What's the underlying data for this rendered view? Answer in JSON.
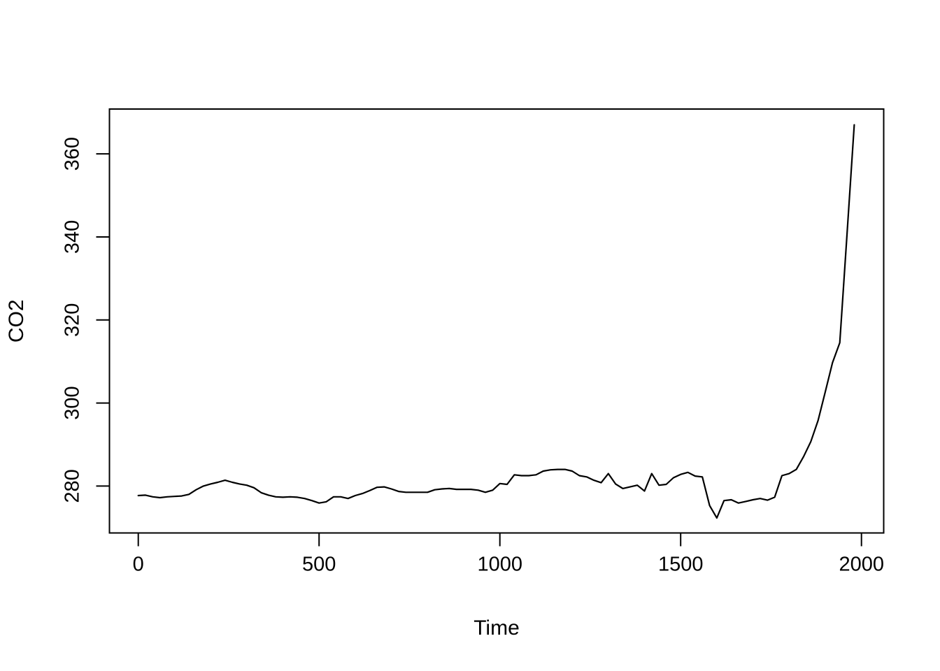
{
  "chart_data": {
    "type": "line",
    "title": "",
    "xlabel": "Time",
    "ylabel": "CO2",
    "grid": false,
    "legend": "none",
    "frame": true,
    "background_color": "#ffffff",
    "line_color": "#000000",
    "xticks": [
      0,
      500,
      1000,
      1500,
      2000
    ],
    "yticks": [
      280,
      300,
      320,
      340,
      360
    ],
    "xtick_labels": [
      "0",
      "500",
      "1000",
      "1500",
      "2000"
    ],
    "ytick_labels": [
      "280",
      "300",
      "320",
      "340",
      "360"
    ],
    "xlim": [
      -79.7,
      2061.5
    ],
    "ylim": [
      268.7,
      370.8
    ],
    "x": [
      0,
      20,
      40,
      60,
      80,
      100,
      120,
      140,
      160,
      180,
      200,
      220,
      240,
      260,
      280,
      300,
      320,
      340,
      360,
      380,
      400,
      420,
      440,
      460,
      480,
      500,
      520,
      540,
      560,
      580,
      600,
      620,
      640,
      660,
      680,
      700,
      720,
      740,
      760,
      780,
      800,
      820,
      840,
      860,
      880,
      900,
      920,
      940,
      960,
      980,
      1000,
      1020,
      1040,
      1060,
      1080,
      1100,
      1120,
      1140,
      1160,
      1180,
      1200,
      1220,
      1240,
      1260,
      1280,
      1300,
      1320,
      1340,
      1360,
      1380,
      1400,
      1420,
      1440,
      1460,
      1480,
      1500,
      1520,
      1540,
      1560,
      1580,
      1600,
      1620,
      1640,
      1660,
      1680,
      1700,
      1720,
      1740,
      1760,
      1780,
      1800,
      1820,
      1840,
      1860,
      1880,
      1900,
      1920,
      1940,
      1960,
      1980
    ],
    "y": [
      277.7,
      277.8,
      277.4,
      277.2,
      277.4,
      277.5,
      277.6,
      278.0,
      279.1,
      280.0,
      280.5,
      280.9,
      281.4,
      280.9,
      280.5,
      280.2,
      279.6,
      278.4,
      277.8,
      277.4,
      277.3,
      277.4,
      277.3,
      277.0,
      276.5,
      275.9,
      276.2,
      277.4,
      277.4,
      277.0,
      277.7,
      278.2,
      278.9,
      279.7,
      279.8,
      279.3,
      278.7,
      278.5,
      278.5,
      278.5,
      278.5,
      279.1,
      279.3,
      279.4,
      279.2,
      279.2,
      279.2,
      279.0,
      278.5,
      279.0,
      280.6,
      280.4,
      282.7,
      282.5,
      282.5,
      282.7,
      283.6,
      283.9,
      284.0,
      284.0,
      283.6,
      282.5,
      282.2,
      281.4,
      280.8,
      283.0,
      280.5,
      279.4,
      279.8,
      280.2,
      278.8,
      283.0,
      280.2,
      280.4,
      282.0,
      282.8,
      283.3,
      282.4,
      282.2,
      275.3,
      272.3,
      276.5,
      276.7,
      275.9,
      276.3,
      276.7,
      277.0,
      276.6,
      277.3,
      282.5,
      283.0,
      284.0,
      287.1,
      290.7,
      295.8,
      302.7,
      309.7,
      314.5,
      340.5,
      367.0
    ]
  }
}
